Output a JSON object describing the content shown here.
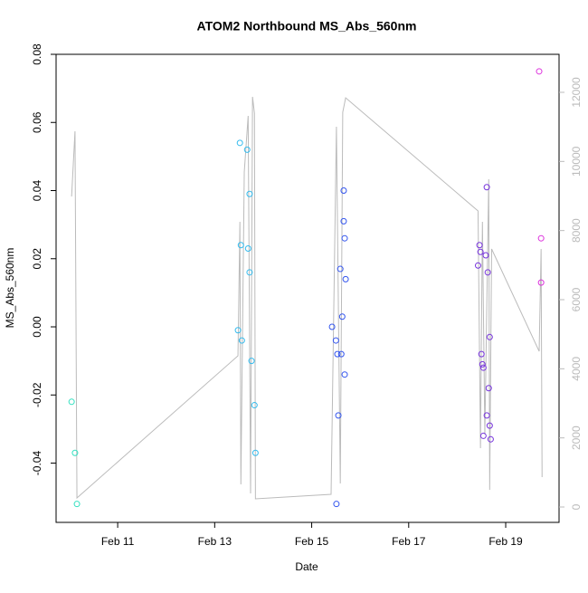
{
  "chart_data": {
    "type": "scatter",
    "title": "ATOM2 Northbound MS_Abs_560nm",
    "x_label": "Date",
    "y_label": "MS_Abs_560nm",
    "xlim": [
      9.73,
      20.1
    ],
    "xticks": [
      {
        "value": 11,
        "label": "Feb 11"
      },
      {
        "value": 13,
        "label": "Feb 13"
      },
      {
        "value": 15,
        "label": "Feb 15"
      },
      {
        "value": 17,
        "label": "Feb 17"
      },
      {
        "value": 19,
        "label": "Feb 19"
      }
    ],
    "ylim": [
      -0.0574,
      0.08
    ],
    "yticks": [
      {
        "value": -0.04,
        "label": "-0.04"
      },
      {
        "value": -0.02,
        "label": "-0.02"
      },
      {
        "value": 0,
        "label": "0.00"
      },
      {
        "value": 0.02,
        "label": "0.02"
      },
      {
        "value": 0.04,
        "label": "0.04"
      },
      {
        "value": 0.06,
        "label": "0.06"
      },
      {
        "value": 0.08,
        "label": "0.08"
      }
    ],
    "y2lim": [
      -445,
      13100
    ],
    "y2ticks": [
      0,
      2000,
      4000,
      6000,
      8000,
      10000,
      12000
    ],
    "y2_color": "#bbbbbb",
    "series": [
      {
        "color": "#33e0c0",
        "x": [
          10.05,
          10.12,
          10.16
        ],
        "values": [
          -0.022,
          -0.037,
          -0.052
        ]
      },
      {
        "color": "#33bbee",
        "x": [
          13.48,
          13.52,
          13.54,
          13.56,
          13.67,
          13.69,
          13.72,
          13.72,
          13.76,
          13.82,
          13.84
        ],
        "values": [
          -0.001,
          0.054,
          0.024,
          -0.004,
          0.052,
          0.023,
          0.039,
          0.016,
          -0.01,
          -0.023,
          -0.037
        ]
      },
      {
        "color": "#3355ee",
        "x": [
          15.42,
          15.5,
          15.51,
          15.53,
          15.55,
          15.59,
          15.61,
          15.63,
          15.66,
          15.66,
          15.68,
          15.68,
          15.7
        ],
        "values": [
          0.0,
          -0.004,
          -0.052,
          -0.008,
          -0.026,
          0.017,
          -0.008,
          0.003,
          0.031,
          0.04,
          0.026,
          -0.014,
          0.014
        ]
      },
      {
        "color": "#7733dd",
        "x": [
          18.43,
          18.46,
          18.48,
          18.5,
          18.52,
          18.54,
          18.54,
          18.59,
          18.61,
          18.61,
          18.63,
          18.65,
          18.67,
          18.67,
          18.69
        ],
        "values": [
          0.018,
          0.024,
          0.022,
          -0.008,
          -0.011,
          -0.012,
          -0.032,
          0.021,
          -0.026,
          0.041,
          0.016,
          -0.018,
          -0.029,
          -0.003,
          -0.033
        ]
      },
      {
        "color": "#dd33dd",
        "x": [
          19.69,
          19.73,
          19.73
        ],
        "values": [
          0.075,
          0.026,
          0.013
        ]
      }
    ],
    "line": {
      "axis": "y2",
      "color": "#bbbbbb",
      "x": [
        10.05,
        10.12,
        10.16,
        13.48,
        13.52,
        13.54,
        13.61,
        13.69,
        13.74,
        13.78,
        13.82,
        13.84,
        15.4,
        15.51,
        15.59,
        15.64,
        15.7,
        18.43,
        18.48,
        18.52,
        18.57,
        18.65,
        18.67,
        18.71,
        19.69,
        19.73,
        19.75
      ],
      "values": [
        8987,
        10873,
        262,
        4375,
        8253,
        655,
        9694,
        11318,
        393,
        11869,
        11397,
        236,
        367,
        11003,
        681,
        11423,
        11842,
        8567,
        1703,
        8253,
        2096,
        9484,
        498,
        7467,
        4506,
        7467,
        865
      ]
    }
  }
}
